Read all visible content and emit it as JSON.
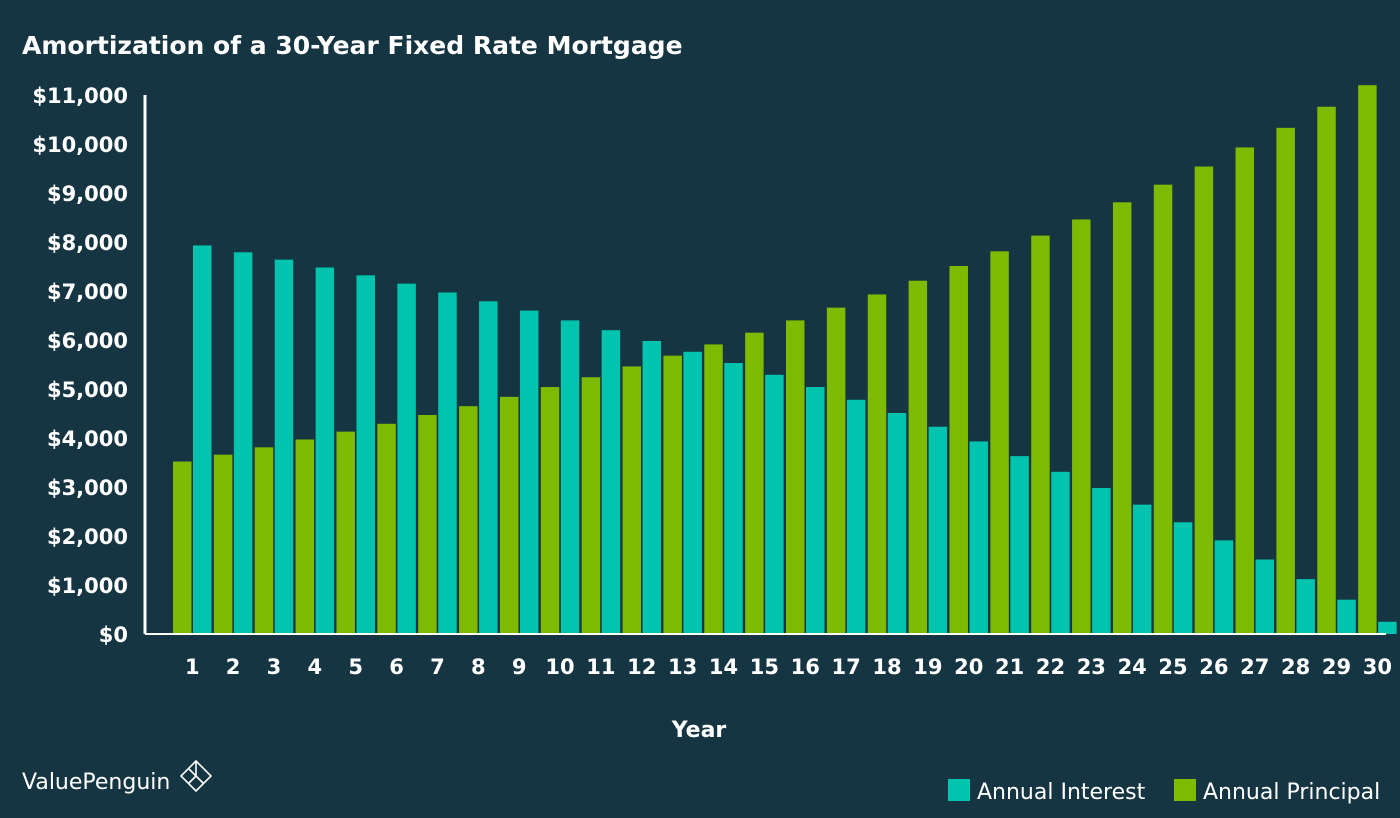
{
  "brand": {
    "name": "ValuePenguin",
    "logo_icon": "valuepenguin-logo-icon"
  },
  "colors": {
    "background": "#163542",
    "interest": "#00c4ae",
    "principal": "#7dba00",
    "axis": "#ffffff",
    "text": "#ffffff"
  },
  "chart_data": {
    "type": "bar",
    "title": "Amortization of a 30-Year Fixed Rate Mortgage",
    "xlabel": "Year",
    "ylabel": "",
    "ylim": [
      0,
      11000
    ],
    "yticks": [
      0,
      1000,
      2000,
      3000,
      4000,
      5000,
      6000,
      7000,
      8000,
      9000,
      10000,
      11000
    ],
    "ytick_labels": [
      "$0",
      "$1,000",
      "$2,000",
      "$3,000",
      "$4,000",
      "$5,000",
      "$6,000",
      "$7,000",
      "$8,000",
      "$9,000",
      "$10,000",
      "$11,000"
    ],
    "grid": false,
    "legend_position": "bottom-right",
    "categories": [
      "1",
      "2",
      "3",
      "4",
      "5",
      "6",
      "7",
      "8",
      "9",
      "10",
      "11",
      "12",
      "13",
      "14",
      "15",
      "16",
      "17",
      "18",
      "19",
      "20",
      "21",
      "22",
      "23",
      "24",
      "25",
      "26",
      "27",
      "28",
      "29",
      "30"
    ],
    "series": [
      {
        "name": "Annual Principal",
        "color": "#7dba00",
        "values": [
          3520,
          3660,
          3810,
          3970,
          4130,
          4290,
          4470,
          4650,
          4840,
          5040,
          5240,
          5460,
          5680,
          5910,
          6150,
          6400,
          6660,
          6930,
          7210,
          7510,
          7810,
          8130,
          8460,
          8810,
          9170,
          9540,
          9930,
          10330,
          10760,
          11200
        ]
      },
      {
        "name": "Annual Interest",
        "color": "#00c4ae",
        "values": [
          7930,
          7790,
          7640,
          7480,
          7320,
          7150,
          6970,
          6790,
          6600,
          6400,
          6200,
          5980,
          5760,
          5530,
          5290,
          5040,
          4780,
          4510,
          4230,
          3930,
          3630,
          3310,
          2980,
          2640,
          2280,
          1910,
          1520,
          1120,
          700,
          250
        ]
      }
    ],
    "legend": [
      {
        "label": "Annual Interest",
        "color": "#00c4ae"
      },
      {
        "label": "Annual Principal",
        "color": "#7dba00"
      }
    ]
  }
}
